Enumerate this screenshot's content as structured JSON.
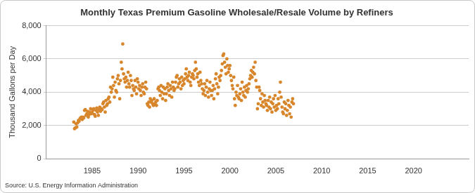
{
  "chart_data": {
    "type": "scatter",
    "title": "Monthly Texas Premium Gasoline Wholesale/Resale Volume by Refiners",
    "y_label": "Thousand Gallons per Day",
    "source": "Source: U.S. Energy Information Administration",
    "color": "#d8862c",
    "marker": "circle",
    "grid": true,
    "xlim": [
      1980,
      2026
    ],
    "xticks": [
      1985,
      1990,
      1995,
      2000,
      2005,
      2010,
      2015,
      2020
    ],
    "ylim": [
      0,
      8000
    ],
    "yticks": [
      0,
      {
        "value": 2000,
        "label": "2,000"
      },
      {
        "value": 4000,
        "label": "4,000"
      },
      {
        "value": 6000,
        "label": "6,000"
      },
      {
        "value": 8000,
        "label": "8,000"
      }
    ],
    "x": [
      1983.0,
      1983.08,
      1983.17,
      1983.25,
      1983.33,
      1983.42,
      1983.5,
      1983.58,
      1983.67,
      1983.75,
      1983.83,
      1983.92,
      1984.0,
      1984.08,
      1984.17,
      1984.25,
      1984.33,
      1984.42,
      1984.5,
      1984.58,
      1984.67,
      1984.75,
      1984.83,
      1984.92,
      1985.0,
      1985.08,
      1985.17,
      1985.25,
      1985.33,
      1985.42,
      1985.5,
      1985.58,
      1985.67,
      1985.75,
      1985.83,
      1985.92,
      1986.0,
      1986.08,
      1986.17,
      1986.25,
      1986.33,
      1986.42,
      1986.5,
      1986.58,
      1986.67,
      1986.75,
      1986.83,
      1986.92,
      1987.0,
      1987.08,
      1987.17,
      1987.25,
      1987.33,
      1987.42,
      1987.5,
      1987.58,
      1987.67,
      1987.75,
      1987.83,
      1987.92,
      1988.0,
      1988.08,
      1988.17,
      1988.25,
      1988.33,
      1988.42,
      1988.5,
      1988.58,
      1988.67,
      1988.75,
      1988.83,
      1988.92,
      1989.0,
      1989.08,
      1989.17,
      1989.25,
      1989.33,
      1989.42,
      1989.5,
      1989.58,
      1989.67,
      1989.75,
      1989.83,
      1989.92,
      1990.0,
      1990.08,
      1990.17,
      1990.25,
      1990.33,
      1990.42,
      1990.5,
      1990.58,
      1990.67,
      1990.75,
      1990.83,
      1990.92,
      1991.0,
      1991.08,
      1991.17,
      1991.25,
      1991.33,
      1991.42,
      1991.5,
      1991.58,
      1991.67,
      1991.75,
      1991.83,
      1991.92,
      1992.0,
      1992.08,
      1992.17,
      1992.25,
      1992.33,
      1992.42,
      1992.5,
      1992.58,
      1992.67,
      1992.75,
      1992.83,
      1992.92,
      1993.0,
      1993.08,
      1993.17,
      1993.25,
      1993.33,
      1993.42,
      1993.5,
      1993.58,
      1993.67,
      1993.75,
      1993.83,
      1993.92,
      1994.0,
      1994.08,
      1994.17,
      1994.25,
      1994.33,
      1994.42,
      1994.5,
      1994.58,
      1994.67,
      1994.75,
      1994.83,
      1994.92,
      1995.0,
      1995.08,
      1995.17,
      1995.25,
      1995.33,
      1995.42,
      1995.5,
      1995.58,
      1995.67,
      1995.75,
      1995.83,
      1995.92,
      1996.0,
      1996.08,
      1996.17,
      1996.25,
      1996.33,
      1996.42,
      1996.5,
      1996.58,
      1996.67,
      1996.75,
      1996.83,
      1996.92,
      1997.0,
      1997.08,
      1997.17,
      1997.25,
      1997.33,
      1997.42,
      1997.5,
      1997.58,
      1997.67,
      1997.75,
      1997.83,
      1997.92,
      1998.0,
      1998.08,
      1998.17,
      1998.25,
      1998.33,
      1998.42,
      1998.5,
      1998.58,
      1998.67,
      1998.75,
      1998.83,
      1998.92,
      1999.0,
      1999.08,
      1999.17,
      1999.25,
      1999.33,
      1999.42,
      1999.5,
      1999.58,
      1999.67,
      1999.75,
      1999.83,
      1999.92,
      2000.0,
      2000.08,
      2000.17,
      2000.25,
      2000.33,
      2000.42,
      2000.5,
      2000.58,
      2000.67,
      2000.75,
      2000.83,
      2000.92,
      2001.0,
      2001.08,
      2001.17,
      2001.25,
      2001.33,
      2001.42,
      2001.5,
      2001.58,
      2001.67,
      2001.75,
      2001.83,
      2001.92,
      2002.0,
      2002.08,
      2002.17,
      2002.25,
      2002.33,
      2002.42,
      2002.5,
      2002.58,
      2002.67,
      2002.75,
      2002.83,
      2002.92,
      2003.0,
      2003.08,
      2003.17,
      2003.25,
      2003.33,
      2003.42,
      2003.5,
      2003.58,
      2003.67,
      2003.75,
      2003.83,
      2003.92,
      2004.0,
      2004.08,
      2004.17,
      2004.25,
      2004.33,
      2004.42,
      2004.5,
      2004.58,
      2004.67,
      2004.75,
      2004.83,
      2004.92,
      2005.0,
      2005.08,
      2005.17,
      2005.25,
      2005.33,
      2005.42,
      2005.5,
      2005.58,
      2005.67,
      2005.75,
      2005.83,
      2005.92,
      2006.0,
      2006.08,
      2006.17,
      2006.25,
      2006.33,
      2006.42,
      2006.5,
      2006.58,
      2006.67,
      2006.75,
      2006.83,
      2006.92
    ],
    "values": [
      2200,
      1800,
      1850,
      2100,
      1900,
      2150,
      2300,
      2250,
      2400,
      2450,
      2500,
      2350,
      2500,
      2450,
      2900,
      2950,
      2600,
      2700,
      2850,
      2500,
      2650,
      2800,
      3000,
      2700,
      2750,
      2900,
      3000,
      2650,
      2550,
      2900,
      3050,
      2800,
      2600,
      2950,
      3100,
      2850,
      3000,
      2950,
      3300,
      3400,
      3100,
      2800,
      3500,
      3200,
      3300,
      3600,
      3700,
      3400,
      4300,
      4000,
      4200,
      4900,
      4400,
      3700,
      4600,
      4100,
      4000,
      4800,
      5000,
      4500,
      3600,
      4700,
      5800,
      5400,
      6900,
      5100,
      4800,
      4600,
      4900,
      4300,
      4700,
      5200,
      4500,
      4300,
      5000,
      4700,
      3800,
      4400,
      4200,
      4100,
      4700,
      4300,
      3900,
      4800,
      4600,
      4200,
      4400,
      4100,
      3800,
      4300,
      4500,
      4000,
      3900,
      4300,
      4600,
      4200,
      3300,
      3200,
      3400,
      3100,
      3600,
      3400,
      3500,
      3300,
      3200,
      3600,
      3300,
      3400,
      3200,
      3500,
      4200,
      4300,
      4100,
      3800,
      4400,
      4000,
      3600,
      4300,
      3900,
      4200,
      3500,
      3900,
      4300,
      4500,
      4100,
      3800,
      4400,
      4200,
      3700,
      4600,
      4300,
      4100,
      4200,
      4600,
      4900,
      5000,
      4300,
      4500,
      4800,
      4600,
      4200,
      4900,
      4400,
      4700,
      4500,
      4800,
      5100,
      5400,
      4900,
      4700,
      5000,
      5200,
      4600,
      4400,
      4900,
      5100,
      5000,
      4800,
      5300,
      5800,
      5400,
      4900,
      5100,
      4600,
      4400,
      5200,
      4700,
      4500,
      4200,
      3900,
      4100,
      4500,
      3800,
      4300,
      4700,
      4000,
      3700,
      4200,
      4600,
      4100,
      3800,
      4100,
      4400,
      3600,
      4200,
      4800,
      5100,
      4500,
      3900,
      4300,
      4900,
      4700,
      5000,
      5300,
      5700,
      6200,
      6300,
      5800,
      5500,
      5100,
      6000,
      5600,
      5200,
      5400,
      5600,
      5000,
      4700,
      4400,
      4200,
      4900,
      3600,
      3200,
      4000,
      3800,
      4400,
      3700,
      3600,
      3900,
      4200,
      3500,
      4600,
      4000,
      3800,
      4300,
      3700,
      4100,
      4400,
      4000,
      4200,
      4500,
      4800,
      5000,
      5300,
      4900,
      5200,
      5500,
      5100,
      5800,
      4700,
      4300,
      3000,
      3300,
      4300,
      4100,
      3600,
      3200,
      3900,
      3400,
      3100,
      3800,
      3500,
      3300,
      3200,
      2900,
      3500,
      3100,
      3700,
      3000,
      3400,
      2800,
      3300,
      3600,
      3100,
      3800,
      2900,
      3200,
      3000,
      3600,
      3300,
      4000,
      4600,
      3700,
      3100,
      2800,
      2700,
      3400,
      3000,
      3300,
      2600,
      2900,
      3500,
      3200,
      2700,
      3100,
      2500,
      3400,
      3600,
      3300
    ]
  }
}
